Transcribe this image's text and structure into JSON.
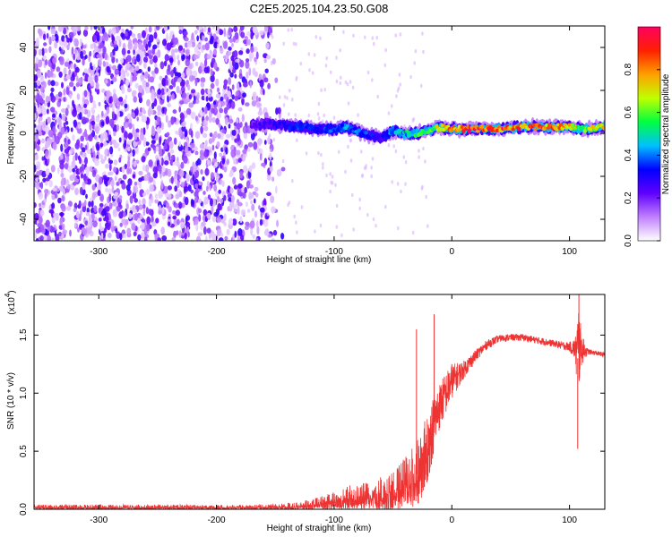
{
  "title": "C2E5.2025.104.23.50.G08",
  "chart_data": [
    {
      "type": "heatmap",
      "title": "C2E5.2025.104.23.50.G08",
      "xlabel": "Height of straight line (km)",
      "ylabel": "Frequency (Hz)",
      "xlim": [
        -355,
        130
      ],
      "ylim": [
        -50,
        50
      ],
      "x_ticks": [
        -300,
        -200,
        -100,
        0,
        100
      ],
      "x_tick_labels": [
        "-300",
        "-200",
        "-100",
        "0",
        "100"
      ],
      "y_ticks": [
        40,
        20,
        0,
        -20,
        -40
      ],
      "y_tick_labels": [
        "40",
        "20",
        "0",
        "-20",
        "-40"
      ],
      "colorbar": {
        "label": "Normalized spectral amplitude",
        "range": [
          0,
          1
        ],
        "ticks": [
          0.0,
          0.2,
          0.4,
          0.6,
          0.8
        ],
        "tick_labels": [
          "0.0",
          "0.2",
          "0.4",
          "0.6",
          "0.8"
        ],
        "colors": [
          "#ffffff",
          "#c080ff",
          "#6000ff",
          "#0000ff",
          "#00c0ff",
          "#00ff40",
          "#c0ff00",
          "#ffa000",
          "#ff2000",
          "#ff0060"
        ]
      },
      "signal_trace": {
        "x": [
          -170,
          -150,
          -130,
          -110,
          -100,
          -90,
          -80,
          -70,
          -60,
          -50,
          -40,
          -30,
          -20,
          -10,
          0,
          20,
          40,
          60,
          80,
          100,
          110,
          130
        ],
        "freq_hz": [
          4,
          4,
          3,
          2,
          2,
          3,
          1,
          -1,
          -2,
          1,
          0,
          0,
          1,
          3,
          2,
          2,
          2,
          3,
          3,
          3,
          2,
          3
        ],
        "amplitude": [
          0.25,
          0.3,
          0.35,
          0.35,
          0.4,
          0.45,
          0.4,
          0.35,
          0.3,
          0.45,
          0.5,
          0.55,
          0.6,
          0.7,
          0.85,
          0.95,
          0.95,
          0.9,
          0.85,
          0.8,
          0.6,
          0.8
        ]
      },
      "noise_region_x": [
        -355,
        -160
      ]
    },
    {
      "type": "line",
      "xlabel": "Height of straight line (km)",
      "ylabel": "SNR (10 * v/v)",
      "y_multiplier_label": "(x10",
      "y_multiplier_exp": "4",
      "y_multiplier_close": ")",
      "xlim": [
        -355,
        130
      ],
      "ylim": [
        0,
        1.85
      ],
      "x_ticks": [
        -300,
        -200,
        -100,
        0,
        100
      ],
      "x_tick_labels": [
        "-300",
        "-200",
        "-100",
        "0",
        "100"
      ],
      "y_ticks": [
        0.0,
        0.5,
        1.0,
        1.5
      ],
      "y_tick_labels": [
        "0.0",
        "0.5",
        "1.0",
        "1.5"
      ],
      "series": [
        {
          "name": "SNR",
          "color": "#ee3333",
          "x": [
            -355,
            -300,
            -250,
            -200,
            -160,
            -130,
            -110,
            -90,
            -70,
            -50,
            -40,
            -30,
            -25,
            -20,
            -15,
            -10,
            -5,
            0,
            10,
            20,
            30,
            40,
            50,
            60,
            70,
            80,
            90,
            100,
            105,
            107,
            108,
            110,
            115,
            120,
            130
          ],
          "base": [
            0.02,
            0.02,
            0.02,
            0.02,
            0.02,
            0.03,
            0.06,
            0.1,
            0.12,
            0.16,
            0.22,
            0.3,
            0.4,
            0.55,
            0.75,
            0.9,
            1.0,
            1.1,
            1.2,
            1.32,
            1.42,
            1.47,
            1.48,
            1.48,
            1.46,
            1.44,
            1.42,
            1.4,
            1.38,
            1.3,
            1.42,
            1.38,
            1.36,
            1.35,
            1.33
          ],
          "spread": [
            0.02,
            0.02,
            0.02,
            0.02,
            0.02,
            0.03,
            0.06,
            0.1,
            0.12,
            0.18,
            0.22,
            0.28,
            0.3,
            0.3,
            0.25,
            0.2,
            0.18,
            0.15,
            0.08,
            0.05,
            0.04,
            0.03,
            0.03,
            0.03,
            0.03,
            0.03,
            0.03,
            0.04,
            0.1,
            0.45,
            0.4,
            0.15,
            0.03,
            0.02,
            0.02
          ],
          "peaks": [
            [
              -30,
              1.55
            ],
            [
              -15,
              1.68
            ],
            [
              0,
              1.25
            ],
            [
              107,
              0.52
            ],
            [
              108,
              1.85
            ]
          ]
        }
      ]
    }
  ]
}
